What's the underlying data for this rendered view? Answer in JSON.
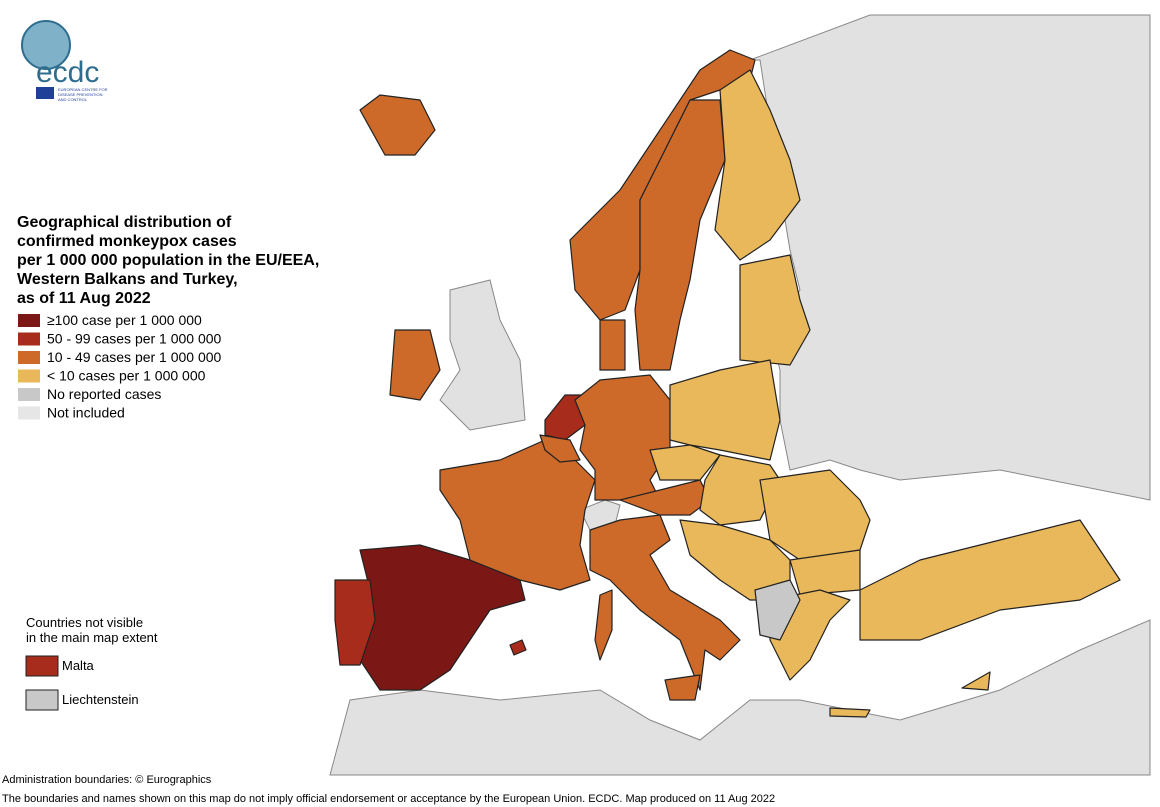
{
  "logo": {
    "name": "ecdc",
    "subtitle": [
      "EUROPEAN CENTRE FOR",
      "DISEASE PREVENTION",
      "AND CONTROL"
    ]
  },
  "title": [
    "Geographical distribution of",
    "confirmed monkeypox cases",
    "per 1 000 000 population in the EU/EEA,",
    "Western Balkans and Turkey,",
    "as of 11 Aug 2022"
  ],
  "legend": {
    "items": [
      {
        "label": "≥100 case per 1 000 000",
        "color": "#7b1714"
      },
      {
        "label": "50 - 99 cases per 1 000 000",
        "color": "#a72c1b"
      },
      {
        "label": "10 - 49 cases per 1 000 000",
        "color": "#cd6a2a"
      },
      {
        "label": "< 10 cases per 1 000 000",
        "color": "#e9b85a"
      },
      {
        "label": "No reported cases",
        "color": "#c8c8c8"
      },
      {
        "label": "Not included",
        "color": "#e6e6e6"
      }
    ]
  },
  "inset": {
    "title": [
      "Countries not visible",
      "in the main map extent"
    ],
    "items": [
      {
        "label": "Malta",
        "color": "#a72c1b"
      },
      {
        "label": "Liechtenstein",
        "color": "#c8c8c8"
      }
    ]
  },
  "footer": [
    "Administration boundaries: © Eurographics",
    "The boundaries and names shown on this map do not imply official endorsement or acceptance by the European Union. ECDC. Map produced on 11 Aug 2022"
  ]
}
